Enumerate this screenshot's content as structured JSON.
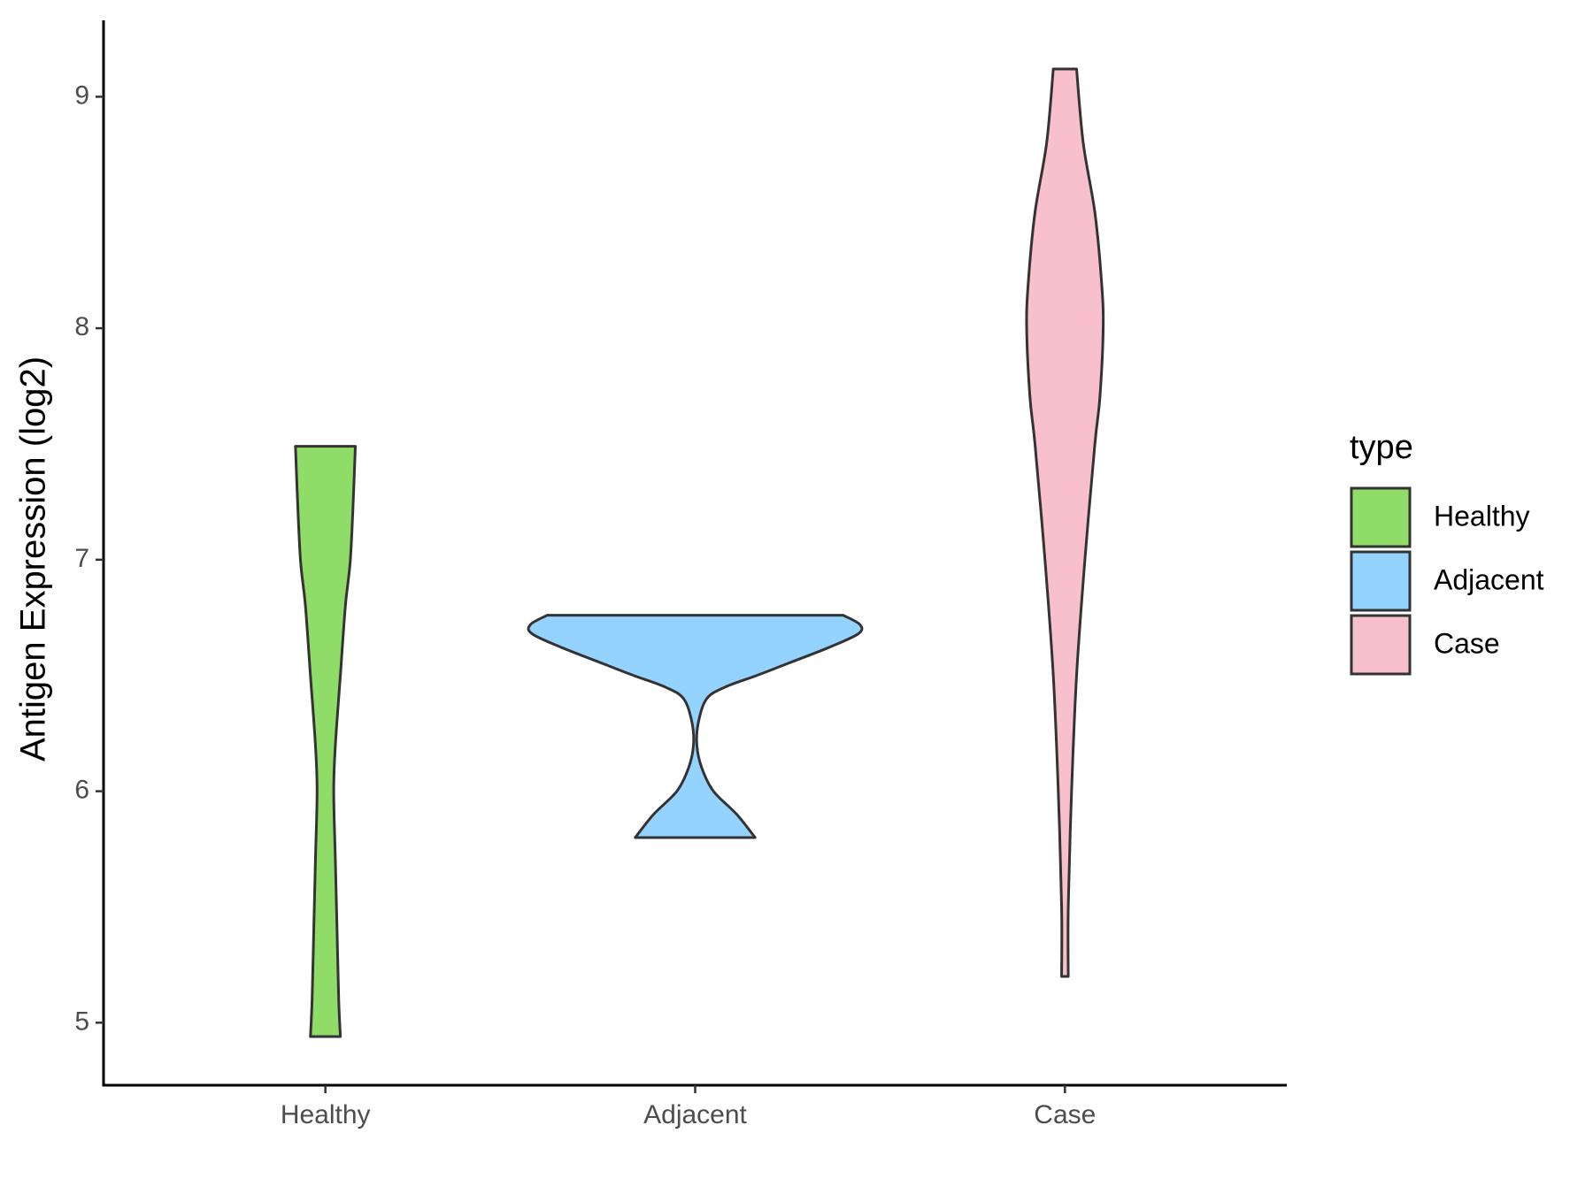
{
  "chart_data": {
    "type": "violin",
    "y_label": "Antigen Expression (log2)",
    "categories": [
      "Healthy",
      "Adjacent",
      "Case"
    ],
    "legend_title": "type",
    "legend_position": "right",
    "ylim": [
      4.73,
      9.33
    ],
    "yticks": [
      5,
      6,
      7,
      8,
      9
    ],
    "series": [
      {
        "name": "Healthy",
        "color": "#90dc68",
        "y": [
          7.49,
          7.3,
          7.0,
          6.8,
          6.5,
          6.2,
          6.0,
          5.7,
          5.4,
          5.1,
          4.94
        ],
        "density": [
          0.18,
          0.17,
          0.15,
          0.12,
          0.09,
          0.06,
          0.05,
          0.06,
          0.07,
          0.08,
          0.09
        ]
      },
      {
        "name": "Adjacent",
        "color": "#94d3ff",
        "y": [
          6.76,
          6.72,
          6.68,
          6.62,
          6.55,
          6.5,
          6.45,
          6.4,
          6.3,
          6.2,
          6.1,
          6.0,
          5.9,
          5.8
        ],
        "density": [
          0.89,
          0.99,
          0.98,
          0.8,
          0.55,
          0.37,
          0.18,
          0.07,
          0.02,
          0.01,
          0.04,
          0.11,
          0.25,
          0.36
        ]
      },
      {
        "name": "Case",
        "color": "#f7c0cc",
        "y": [
          9.12,
          8.8,
          8.5,
          8.2,
          8.0,
          7.7,
          7.5,
          7.0,
          6.5,
          6.0,
          5.5,
          5.2
        ],
        "density": [
          0.07,
          0.11,
          0.18,
          0.22,
          0.23,
          0.21,
          0.18,
          0.12,
          0.07,
          0.04,
          0.02,
          0.02
        ]
      }
    ]
  }
}
